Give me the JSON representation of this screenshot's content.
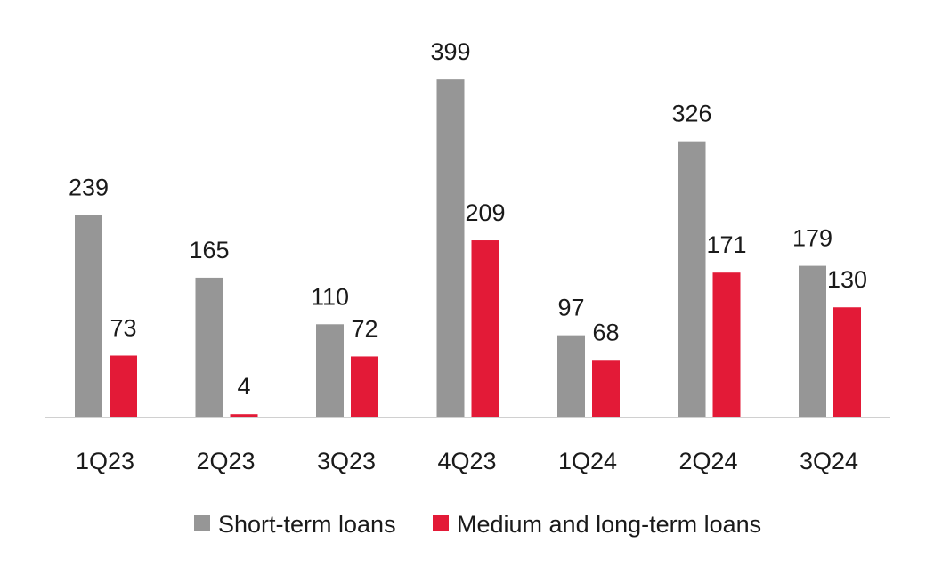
{
  "chart_data": {
    "type": "bar",
    "categories": [
      "1Q23",
      "2Q23",
      "3Q23",
      "4Q23",
      "1Q24",
      "2Q24",
      "3Q24"
    ],
    "series": [
      {
        "name": "Short-term loans",
        "color": "#969696",
        "values": [
          239,
          165,
          110,
          399,
          97,
          326,
          179
        ]
      },
      {
        "name": "Medium and long-term loans",
        "color": "#e31a37",
        "values": [
          73,
          4,
          72,
          209,
          68,
          171,
          130
        ]
      }
    ],
    "ylim": [
      0,
      400
    ],
    "grid": false,
    "legend_position": "bottom"
  }
}
